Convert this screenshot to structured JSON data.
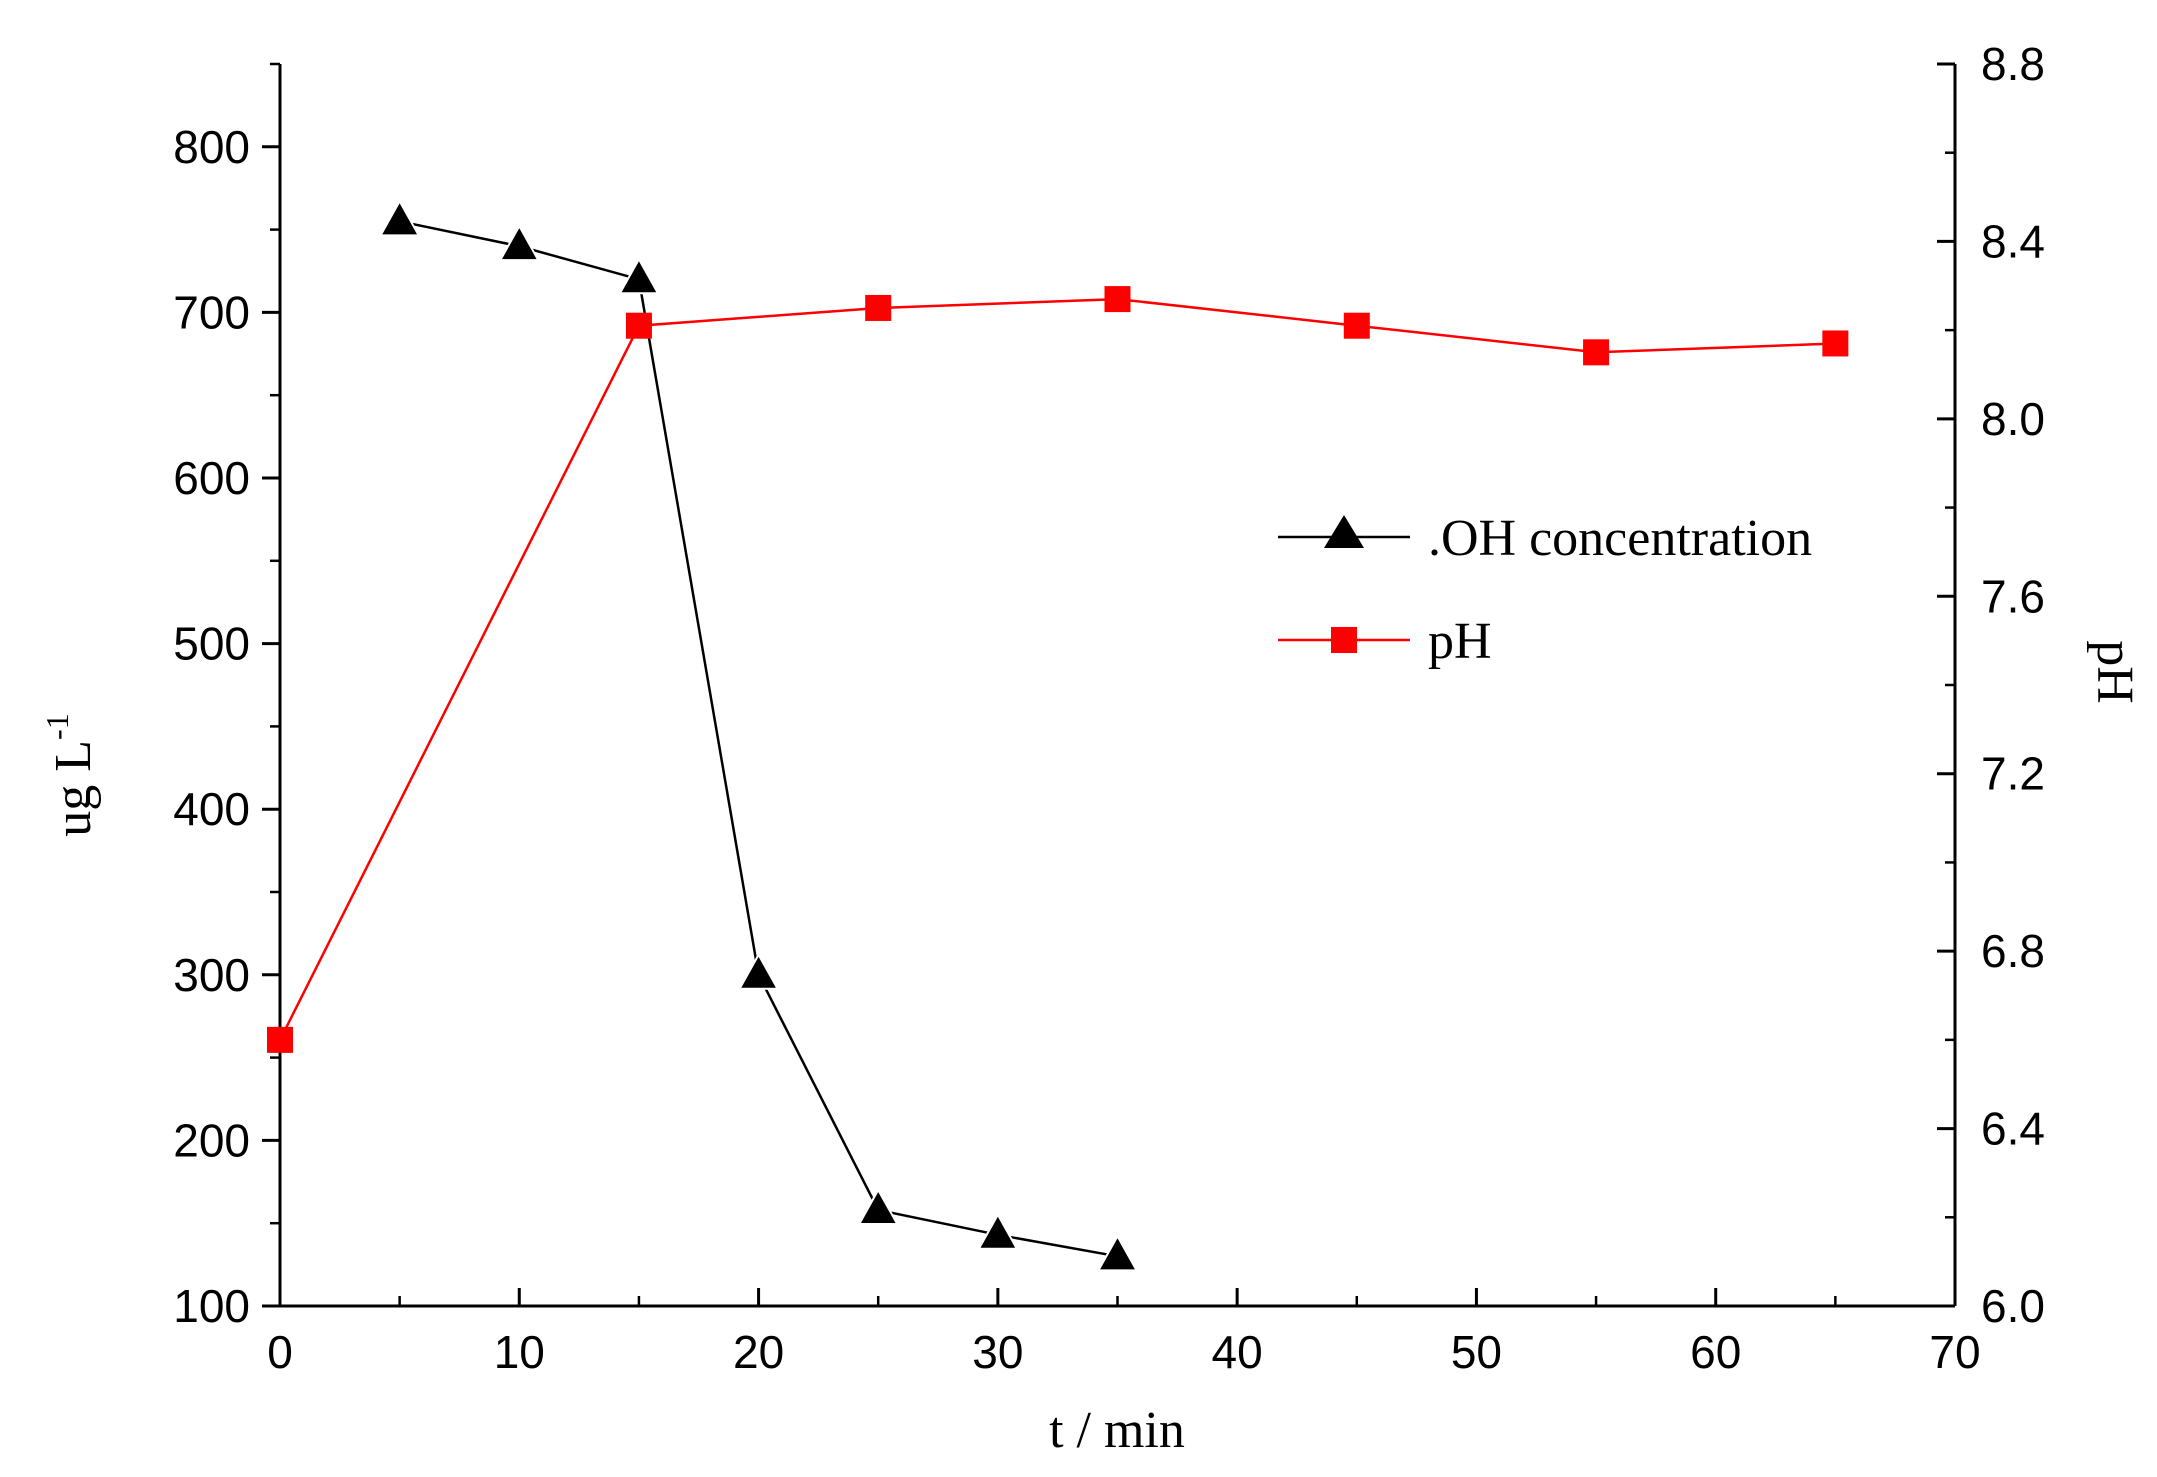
{
  "chart_data": {
    "type": "line",
    "title": "",
    "xlabel": "t / min",
    "ylabel_left": "ug L-1",
    "ylabel_left_base": "ug  L",
    "ylabel_left_sup": "-1",
    "ylabel_right": "pH",
    "xlim": [
      0,
      70
    ],
    "ylim_left": [
      100,
      850
    ],
    "ylim_right": [
      6.0,
      8.8
    ],
    "x_ticks": [
      0,
      10,
      20,
      30,
      40,
      50,
      60,
      70
    ],
    "x_tick_labels": [
      "0",
      "10",
      "20",
      "30",
      "40",
      "50",
      "60",
      "70"
    ],
    "y_left_ticks": [
      100,
      200,
      300,
      400,
      500,
      600,
      700,
      800
    ],
    "y_left_tick_labels": [
      "100",
      "200",
      "300",
      "400",
      "500",
      "600",
      "700",
      "800"
    ],
    "y_right_ticks": [
      6.0,
      6.4,
      6.8,
      7.2,
      7.6,
      8.0,
      8.4,
      8.8
    ],
    "y_right_tick_labels": [
      "6.0",
      "6.4",
      "6.8",
      "7.2",
      "7.6",
      "8.0",
      "8.4",
      "8.8"
    ],
    "grid": false,
    "legend_position": "center-right",
    "series": [
      {
        "name": ".OH concentration",
        "axis": "left",
        "marker": "triangle",
        "color": "#000000",
        "x": [
          5,
          10,
          15,
          20,
          25,
          30,
          35
        ],
        "values": [
          755,
          740,
          720,
          300,
          158,
          143,
          130
        ]
      },
      {
        "name": "pH",
        "axis": "right",
        "marker": "square",
        "color": "#ff0000",
        "x": [
          0,
          15,
          25,
          35,
          45,
          55,
          65
        ],
        "values": [
          6.6,
          8.21,
          8.25,
          8.27,
          8.21,
          8.15,
          8.17
        ]
      }
    ]
  }
}
